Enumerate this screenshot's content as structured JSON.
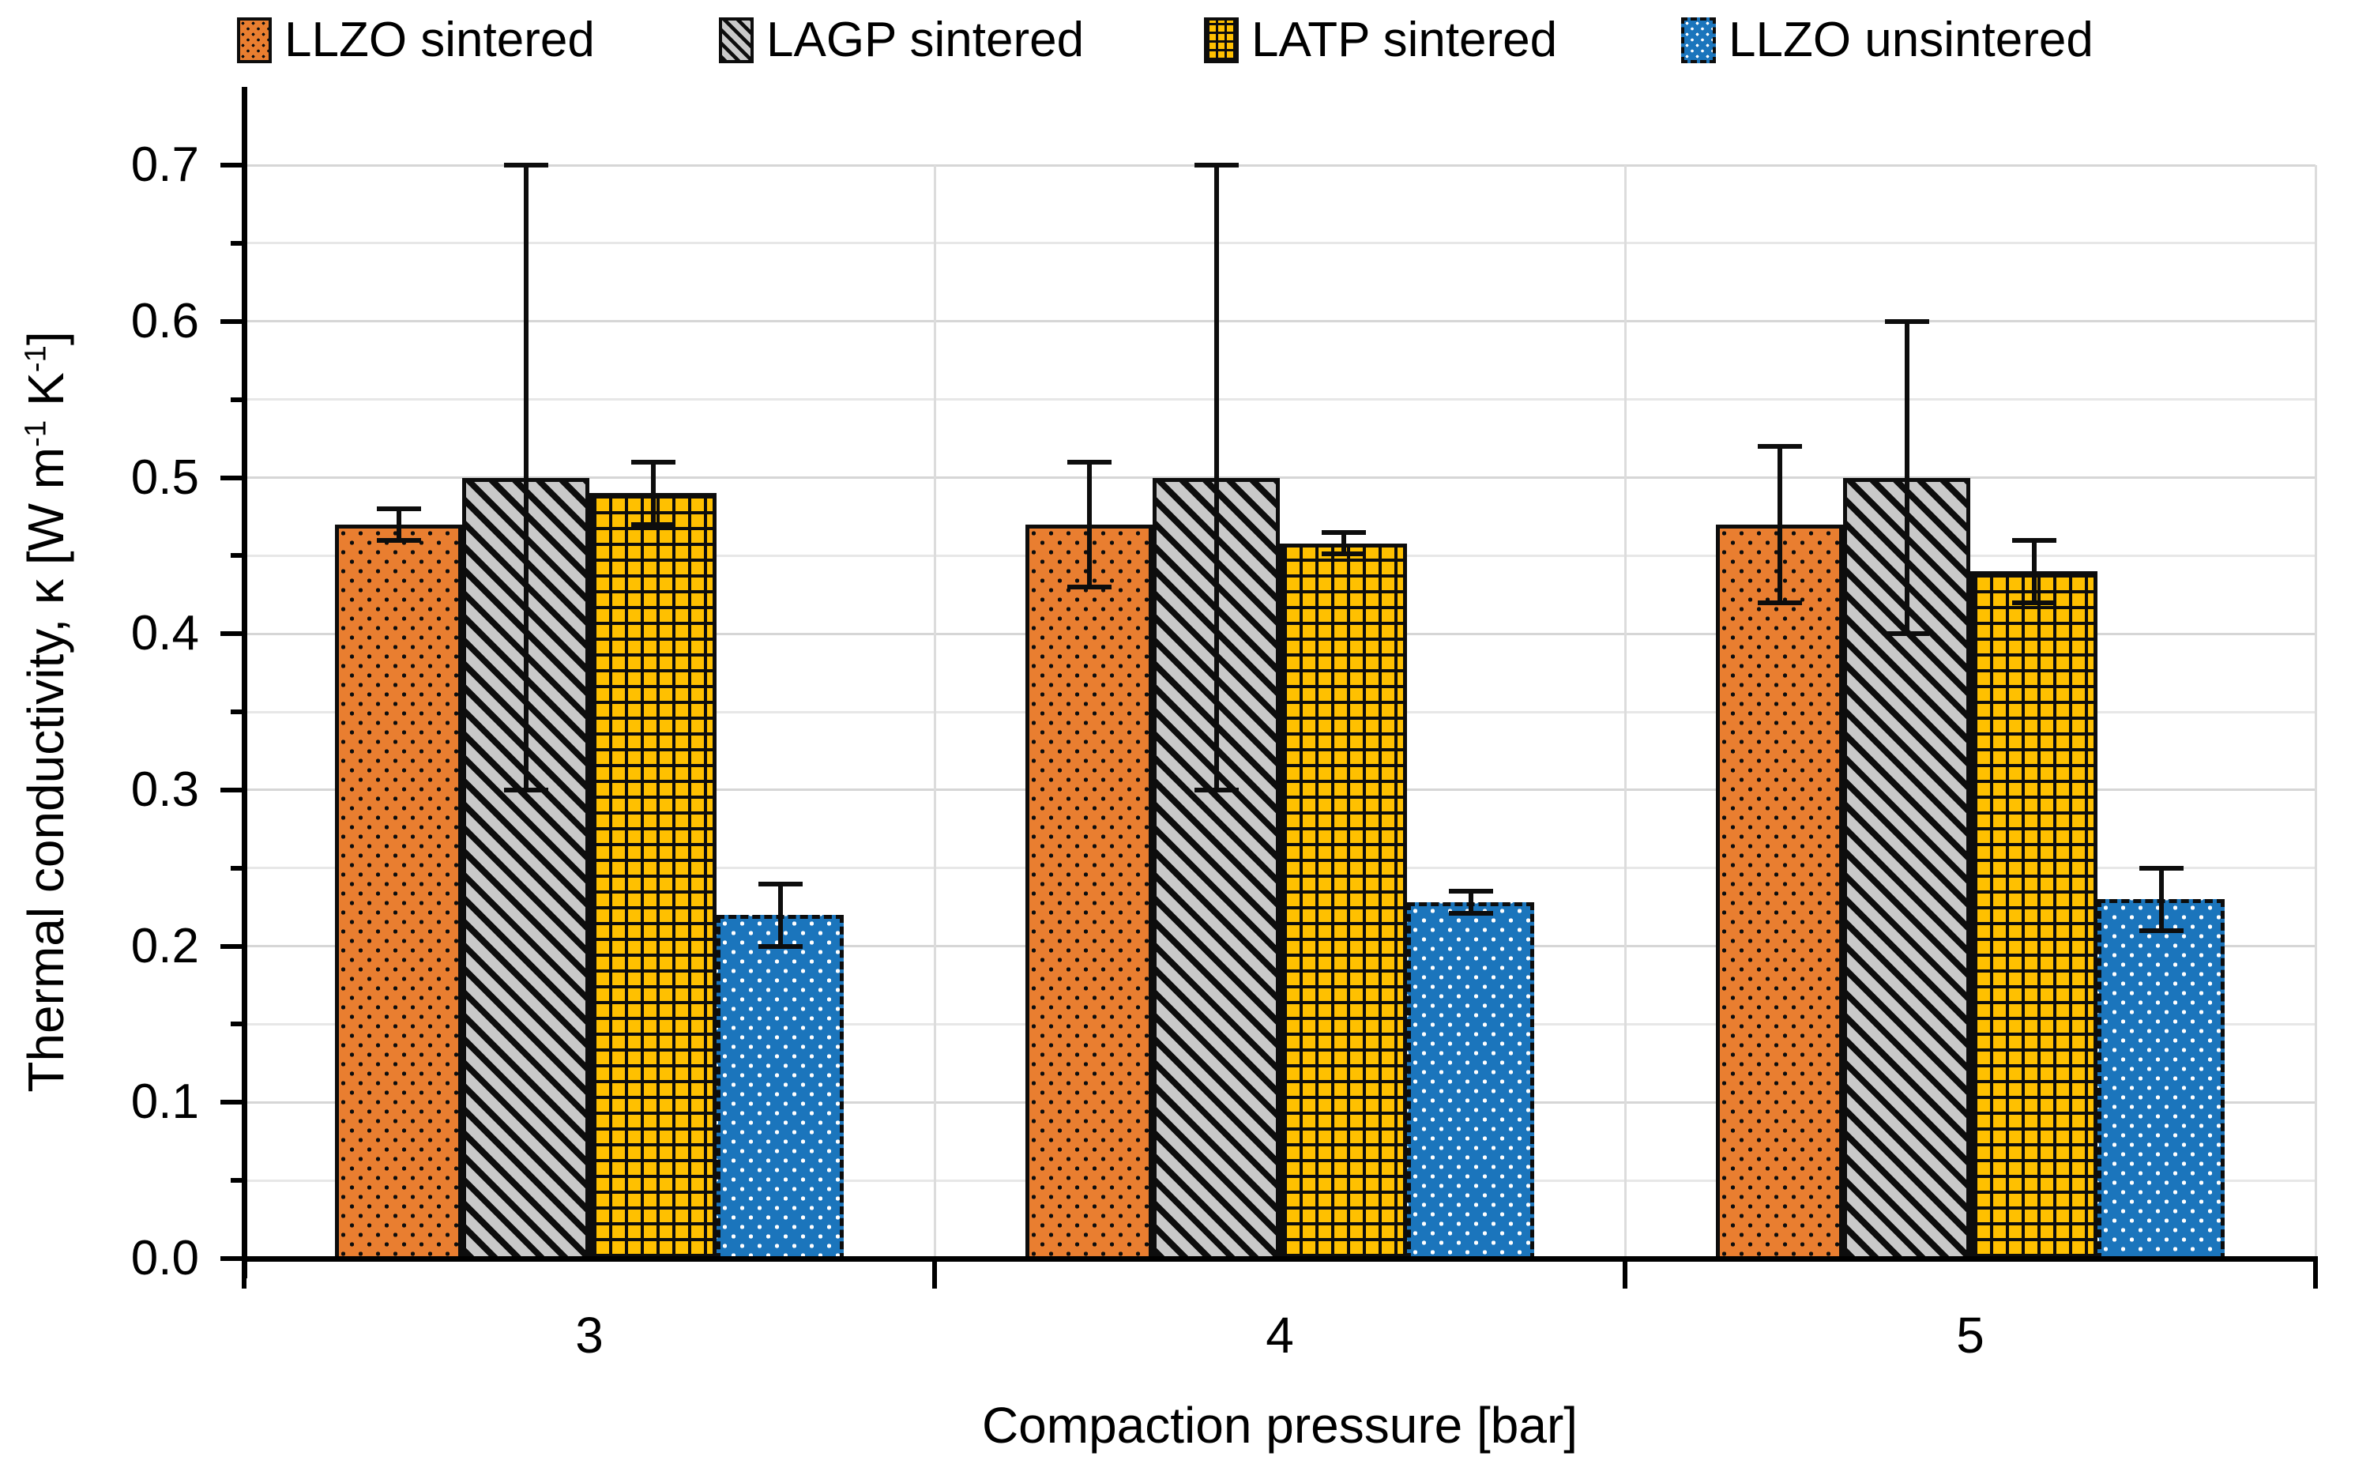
{
  "chart_data": {
    "type": "bar",
    "title": "",
    "categories": [
      "3",
      "4",
      "5"
    ],
    "series": [
      {
        "name": "LLZO sintered",
        "color": "#E97E30",
        "pattern": "dots-black",
        "border_style": "solid",
        "values": [
          0.47,
          0.47,
          0.47
        ],
        "err_minus": [
          0.01,
          0.04,
          0.05
        ],
        "err_plus": [
          0.01,
          0.04,
          0.05
        ]
      },
      {
        "name": "LAGP sintered",
        "color": "#C9C9C9",
        "pattern": "diagonal",
        "border_style": "solid",
        "values": [
          0.5,
          0.5,
          0.5
        ],
        "err_minus": [
          0.2,
          0.2,
          0.1
        ],
        "err_plus": [
          0.2,
          0.2,
          0.1
        ]
      },
      {
        "name": "LATP sintered",
        "color": "#FFC000",
        "pattern": "grid",
        "border_style": "solid",
        "values": [
          0.49,
          0.458,
          0.44
        ],
        "err_minus": [
          0.02,
          0.007,
          0.02
        ],
        "err_plus": [
          0.02,
          0.007,
          0.02
        ]
      },
      {
        "name": "LLZO unsintered",
        "color": "#1B75BC",
        "pattern": "dots-white",
        "border_style": "dashed",
        "values": [
          0.22,
          0.228,
          0.23
        ],
        "err_minus": [
          0.02,
          0.007,
          0.02
        ],
        "err_plus": [
          0.02,
          0.007,
          0.02
        ]
      }
    ],
    "xlabel": "Compaction pressure [bar]",
    "ylabel": "Thermal conductivity, κ [W m⁻¹ K⁻¹]",
    "ylim": [
      0.0,
      0.7
    ],
    "y_major_step": 0.1,
    "y_minor_step": 0.05,
    "y_tick_labels": [
      "0.0",
      "0.1",
      "0.2",
      "0.3",
      "0.4",
      "0.5",
      "0.6",
      "0.7"
    ],
    "grid": "horizontal gridlines every 0.05; vertical category separator lines",
    "legend_position": "top"
  },
  "y_title_parts": {
    "pre": "Thermal conductivity, κ [W m",
    "sup1": "-1",
    "mid": " K",
    "sup2": "-1",
    "post": "]"
  },
  "colors": {
    "background": "#FFFFFF",
    "axis": "#000000",
    "grid_major": "#D6D6D6",
    "grid_minor": "#E7E7E7",
    "pattern_dark": "#0D0D0D",
    "text": "#000000"
  }
}
